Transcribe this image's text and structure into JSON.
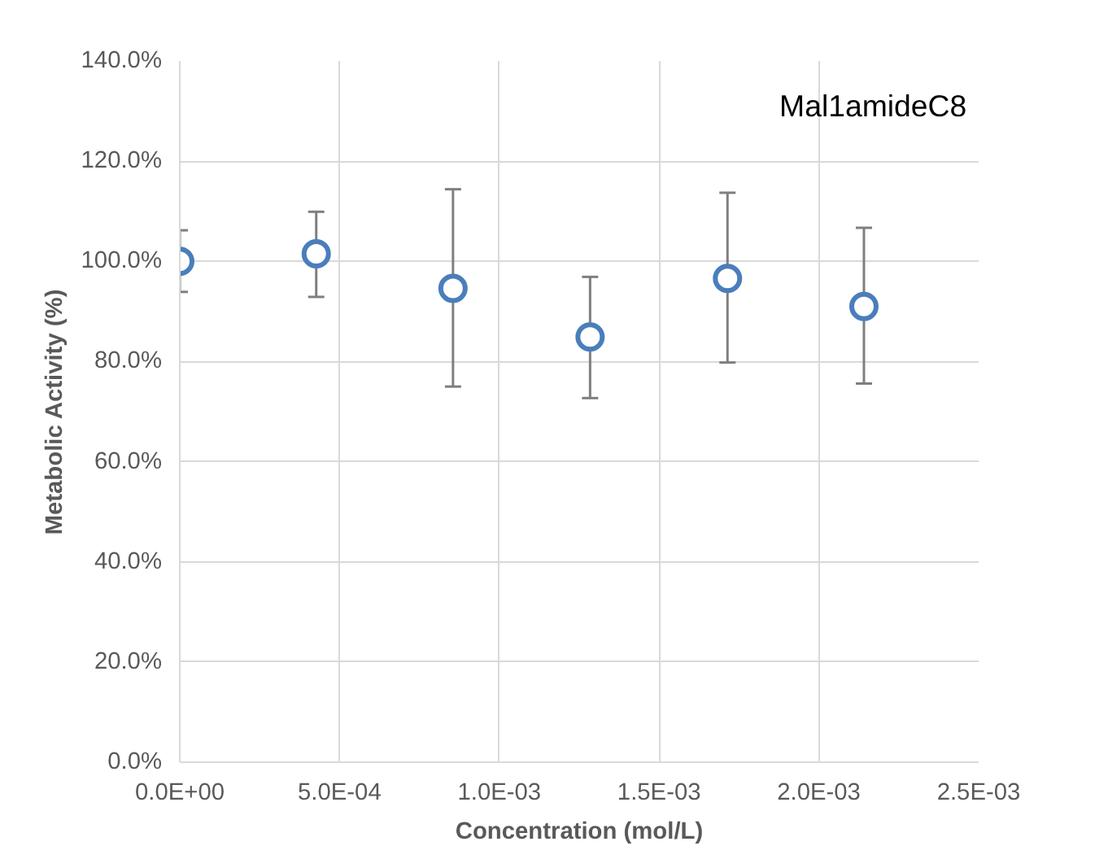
{
  "chart_data": {
    "type": "scatter",
    "xlabel": "Concentration (mol/L)",
    "ylabel": "Metabolic Activity (%)",
    "annotations": [
      "Mal1amideC8"
    ],
    "x": [
      0,
      0.000427,
      0.000855,
      0.001284,
      0.001714,
      0.002141
    ],
    "series": [
      {
        "color": "#4a7ebb",
        "values": [
          100.0,
          101.5,
          94.6,
          84.9,
          96.6,
          91.0
        ],
        "errors": [
          [
            93.9,
            106.2
          ],
          [
            92.9,
            109.9
          ],
          [
            75.0,
            114.4
          ],
          [
            72.7,
            96.9
          ],
          [
            79.8,
            113.7
          ],
          [
            75.6,
            106.7
          ]
        ]
      }
    ],
    "xlim": [
      0,
      0.0025
    ],
    "xticks": [
      {
        "value": 0,
        "label": "0.0E+00"
      },
      {
        "value": 0.0005,
        "label": "5.0E-04"
      },
      {
        "value": 0.001,
        "label": "1.0E-03"
      },
      {
        "value": 0.0015,
        "label": "1.5E-03"
      },
      {
        "value": 0.002,
        "label": "2.0E-03"
      },
      {
        "value": 0.0025,
        "label": "2.5E-03"
      }
    ],
    "ylim": [
      0,
      140
    ],
    "yticks": [
      {
        "value": 0,
        "label": "0.0%"
      },
      {
        "value": 20,
        "label": "20.0%"
      },
      {
        "value": 40,
        "label": "40.0%"
      },
      {
        "value": 60,
        "label": "60.0%"
      },
      {
        "value": 80,
        "label": "80.0%"
      },
      {
        "value": 100,
        "label": "100.0%"
      },
      {
        "value": 120,
        "label": "120.0%"
      },
      {
        "value": 140,
        "label": "140.0%"
      }
    ],
    "grid": true,
    "marker": "circle"
  }
}
